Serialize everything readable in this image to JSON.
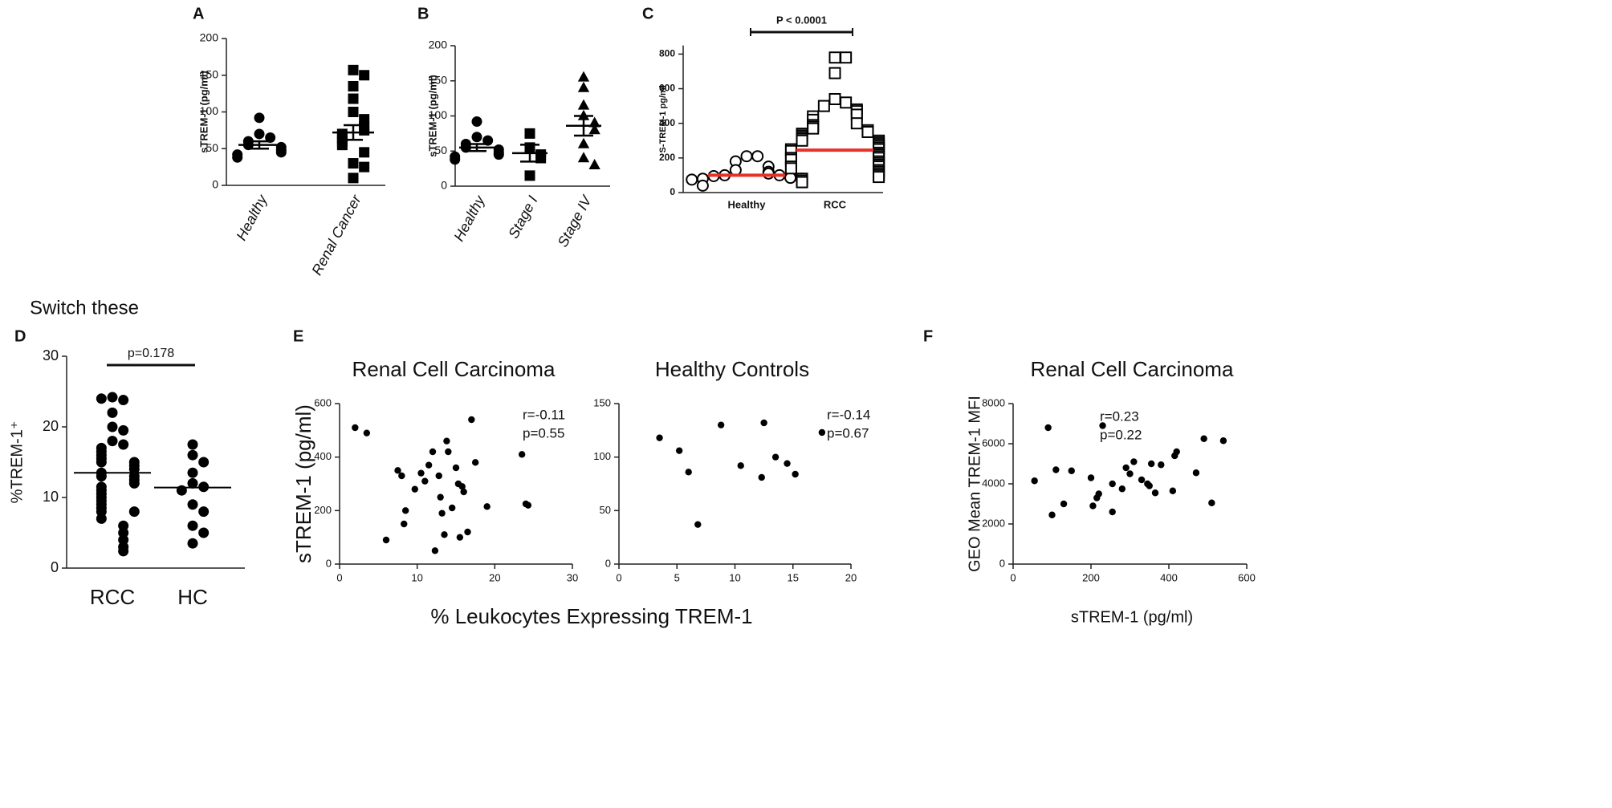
{
  "chart_data": [
    {
      "type": "dot",
      "panel_label": "A",
      "ylabel": "sTREM-1 (pg/ml)",
      "categories": [
        "Healthy",
        "Renal Cancer"
      ],
      "values": [
        [
          92,
          70,
          65,
          60,
          55,
          52,
          48,
          45,
          42,
          38
        ],
        [
          157,
          150,
          135,
          118,
          100,
          90,
          80,
          75,
          70,
          65,
          60,
          55,
          45,
          30,
          25,
          10
        ]
      ],
      "means": [
        55,
        72
      ],
      "sem": [
        5,
        10
      ],
      "markers": [
        "circle",
        "square"
      ],
      "filled": true,
      "color": "#000000",
      "mean_color": "#000000",
      "ylim": [
        0,
        200
      ],
      "yticks": [
        0,
        50,
        100,
        150,
        200
      ]
    },
    {
      "type": "dot",
      "panel_label": "B",
      "ylabel": "sTREM-1 (pg/ml)",
      "categories": [
        "Healthy",
        "Stage I",
        "Stage IV"
      ],
      "values": [
        [
          92,
          70,
          65,
          60,
          55,
          52,
          48,
          45,
          42,
          38
        ],
        [
          75,
          55,
          45,
          40,
          15
        ],
        [
          155,
          140,
          115,
          100,
          90,
          80,
          60,
          40,
          30
        ]
      ],
      "means": [
        55,
        47,
        86
      ],
      "sem": [
        5,
        12,
        14
      ],
      "markers": [
        "circle",
        "square",
        "triangle"
      ],
      "filled": true,
      "color": "#000000",
      "mean_color": "#000000",
      "ylim": [
        0,
        200
      ],
      "yticks": [
        0,
        50,
        100,
        150,
        200
      ]
    },
    {
      "type": "dot",
      "panel_label": "C",
      "ylabel": "S-TREM-1 pg/ml",
      "categories": [
        "Healthy",
        "RCC"
      ],
      "values": [
        [
          210,
          210,
          180,
          150,
          130,
          120,
          110,
          100,
          100,
          95,
          90,
          85,
          80,
          80,
          75,
          40
        ],
        [
          780,
          780,
          690,
          540,
          520,
          500,
          480,
          470,
          450,
          440,
          420,
          400,
          390,
          380,
          370,
          360,
          350,
          340,
          330,
          320,
          310,
          300,
          300,
          290,
          280,
          270,
          260,
          250,
          250,
          240,
          230,
          220,
          210,
          200,
          200,
          190,
          180,
          170,
          160,
          150,
          150,
          140,
          130,
          120,
          110,
          100,
          90,
          80,
          70,
          60
        ]
      ],
      "means": [
        100,
        245
      ],
      "markers": [
        "circle",
        "square"
      ],
      "filled": false,
      "color": "#000000",
      "mean_color": "#e8302a",
      "annotations": [
        "P < 0.0001"
      ],
      "ylim": [
        0,
        850
      ],
      "yticks": [
        0,
        200,
        400,
        600,
        800
      ]
    },
    {
      "type": "dot",
      "panel_label": "D",
      "title": "Switch these",
      "ylabel": "%TREM-1⁺",
      "categories": [
        "RCC",
        "HC"
      ],
      "values": [
        [
          24.2,
          23.8,
          24,
          22,
          20,
          19.5,
          18,
          17.5,
          17,
          16.5,
          16,
          15.5,
          15,
          15,
          14.5,
          14,
          13.5,
          13,
          13,
          12.5,
          12,
          11.5,
          11,
          10.5,
          10,
          9.5,
          9,
          8.5,
          8,
          8,
          7,
          6,
          5,
          4,
          3,
          2.4
        ],
        [
          17.5,
          16,
          15,
          13.5,
          12,
          11.5,
          11,
          9,
          8,
          6,
          5,
          3.5
        ]
      ],
      "means": [
        13.5,
        11.4
      ],
      "markers": [
        "circle",
        "circle"
      ],
      "filled": true,
      "color": "#000000",
      "mean_color": "#000000",
      "annotations": [
        "p=0.178"
      ],
      "ylim": [
        0,
        30
      ],
      "yticks": [
        0,
        10,
        20,
        30
      ]
    },
    {
      "type": "scatter",
      "panel_label": "E",
      "title": "Renal Cell Carcinoma",
      "ylabel": "sTREM-1 (pg/ml)",
      "xlabel": "% Leukocytes Expressing TREM-1",
      "x": [
        2,
        3.5,
        6,
        7.5,
        8,
        8.3,
        8.5,
        9.7,
        10.5,
        11,
        11.5,
        12,
        12.3,
        12.8,
        13,
        13.2,
        13.5,
        13.8,
        14,
        14.5,
        15,
        15.3,
        15.5,
        15.8,
        16,
        16.5,
        17,
        17.5,
        19,
        23.5,
        24,
        24.3
      ],
      "values": [
        510,
        490,
        90,
        350,
        330,
        150,
        200,
        280,
        340,
        310,
        370,
        420,
        50,
        330,
        250,
        190,
        110,
        460,
        420,
        210,
        360,
        300,
        100,
        290,
        270,
        120,
        540,
        380,
        215,
        410,
        225,
        220
      ],
      "color": "#000000",
      "annotations": [
        "r=-0.11",
        "p=0.55"
      ],
      "xlim": [
        0,
        30
      ],
      "xticks": [
        0,
        10,
        20,
        30
      ],
      "ylim": [
        0,
        600
      ],
      "yticks": [
        0,
        200,
        400,
        600
      ]
    },
    {
      "type": "scatter",
      "title": "Healthy Controls",
      "x": [
        3.5,
        5.2,
        6,
        6.8,
        8.8,
        10.5,
        12.3,
        12.5,
        13.5,
        14.5,
        15.2,
        17.5
      ],
      "values": [
        118,
        106,
        86,
        37,
        130,
        92,
        81,
        132,
        100,
        94,
        84,
        123
      ],
      "color": "#000000",
      "annotations": [
        "r=-0.14",
        "p=0.67"
      ],
      "xlim": [
        0,
        20
      ],
      "xticks": [
        0,
        5,
        10,
        15,
        20
      ],
      "ylim": [
        0,
        150
      ],
      "yticks": [
        0,
        50,
        100,
        150
      ]
    },
    {
      "type": "scatter",
      "panel_label": "F",
      "title": "Renal Cell Carcinoma",
      "ylabel": "GEO Mean TREM-1 MFI",
      "xlabel": "sTREM-1 (pg/ml)",
      "x": [
        55,
        90,
        100,
        110,
        130,
        150,
        200,
        205,
        215,
        220,
        230,
        255,
        255,
        280,
        290,
        300,
        310,
        330,
        345,
        350,
        355,
        365,
        380,
        410,
        415,
        420,
        470,
        490,
        510,
        540
      ],
      "values": [
        4150,
        6800,
        2450,
        4700,
        3000,
        4650,
        4300,
        2900,
        3300,
        3500,
        6900,
        2600,
        4000,
        3750,
        4800,
        4500,
        5100,
        4200,
        4000,
        3900,
        5000,
        3550,
        4950,
        3650,
        5400,
        5600,
        4550,
        6250,
        3050,
        6150
      ],
      "color": "#000000",
      "annotations": [
        "r=0.23",
        "p=0.22"
      ],
      "xlim": [
        0,
        600
      ],
      "xticks": [
        0,
        200,
        400,
        600
      ],
      "ylim": [
        0,
        8000
      ],
      "yticks": [
        0,
        2000,
        4000,
        6000,
        8000
      ]
    }
  ]
}
